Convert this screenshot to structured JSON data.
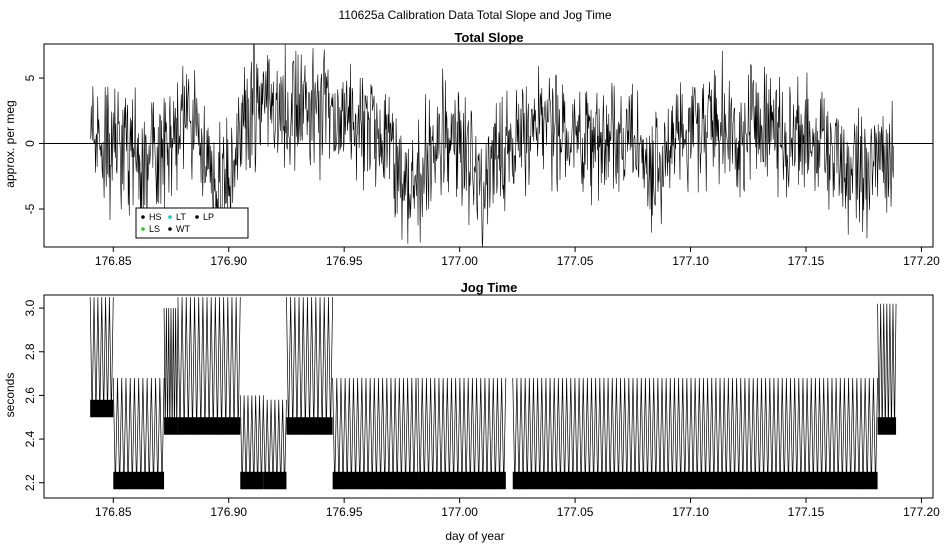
{
  "figure": {
    "title": "110625a   Calibration Data Total Slope and Jog Time"
  },
  "chart_data": [
    {
      "type": "line",
      "title": "Total Slope",
      "xlabel": "",
      "ylabel": "approx. per meg",
      "xlim": [
        176.82,
        177.205
      ],
      "ylim": [
        -7.9,
        7.6
      ],
      "xticks": [
        176.85,
        176.9,
        176.95,
        177.0,
        177.05,
        177.1,
        177.15,
        177.2
      ],
      "xtick_labels": [
        "176.85",
        "176.90",
        "176.95",
        "177.00",
        "177.05",
        "177.10",
        "177.15",
        "177.20"
      ],
      "yticks": [
        -5,
        0,
        5
      ],
      "ytick_labels": [
        "-5",
        "0",
        "5"
      ],
      "hline": 0,
      "legend": {
        "position": "bottom-left",
        "entries": [
          {
            "label": "HS",
            "color": "#000000"
          },
          {
            "label": "LS",
            "color": "#22cc22"
          },
          {
            "label": "LT",
            "color": "#00cccc"
          },
          {
            "label": "WT",
            "color": "#000000"
          },
          {
            "label": "LP",
            "color": "#000000"
          }
        ]
      },
      "series": [
        {
          "color": "#000000",
          "x": [
            176.84,
            176.845,
            176.85,
            176.855,
            176.86,
            176.865,
            176.87,
            176.875,
            176.88,
            176.885,
            176.89,
            176.895,
            176.9,
            176.905,
            176.91,
            176.915,
            176.92,
            176.925,
            176.93,
            176.935,
            176.94,
            176.945,
            176.95,
            176.955,
            176.96,
            176.965,
            176.97,
            176.975,
            176.98,
            176.985,
            176.99,
            176.995,
            177.0,
            177.005,
            177.01,
            177.015,
            177.02,
            177.025,
            177.03,
            177.035,
            177.04,
            177.045,
            177.05,
            177.055,
            177.06,
            177.065,
            177.07,
            177.075,
            177.08,
            177.085,
            177.09,
            177.095,
            177.1,
            177.105,
            177.11,
            177.115,
            177.12,
            177.125,
            177.13,
            177.135,
            177.14,
            177.145,
            177.15,
            177.155,
            177.16,
            177.165,
            177.17,
            177.175,
            177.18,
            177.185,
            177.188
          ],
          "y": [
            1.0,
            -0.5,
            -1.0,
            0.5,
            -1.5,
            -2.0,
            -0.5,
            0.5,
            1.5,
            1.5,
            -1.0,
            -3.5,
            -2.0,
            1.0,
            3.0,
            3.5,
            2.5,
            2.5,
            3.0,
            3.0,
            2.5,
            2.0,
            1.5,
            1.0,
            1.0,
            0.5,
            -0.5,
            -2.5,
            -4.0,
            -1.0,
            0.5,
            1.0,
            0.0,
            -1.5,
            -3.0,
            -1.0,
            0.0,
            0.5,
            1.0,
            1.5,
            1.5,
            1.0,
            0.5,
            0.0,
            -0.5,
            0.0,
            0.5,
            0.0,
            -1.0,
            -2.0,
            0.5,
            1.0,
            1.0,
            1.5,
            2.0,
            1.5,
            1.0,
            1.0,
            1.5,
            1.0,
            0.5,
            0.0,
            0.0,
            -0.5,
            -1.0,
            -1.5,
            -2.0,
            -3.0,
            -1.0,
            -1.5,
            0.0
          ]
        }
      ]
    },
    {
      "type": "line",
      "title": "Jog Time",
      "xlabel": "day of year",
      "ylabel": "seconds",
      "xlim": [
        176.82,
        177.205
      ],
      "ylim": [
        2.13,
        3.06
      ],
      "xticks": [
        176.85,
        176.9,
        176.95,
        177.0,
        177.05,
        177.1,
        177.15,
        177.2
      ],
      "xtick_labels": [
        "176.85",
        "176.90",
        "176.95",
        "177.00",
        "177.05",
        "177.10",
        "177.15",
        "177.20"
      ],
      "yticks": [
        2.2,
        2.4,
        2.6,
        2.8,
        3.0
      ],
      "ytick_labels": [
        "2.2",
        "2.4",
        "2.6",
        "2.8",
        "3.0"
      ],
      "series": [
        {
          "color": "#000000",
          "segments": [
            {
              "x_start": 176.84,
              "x_end": 176.85,
              "low": 2.5,
              "high": 3.05
            },
            {
              "x_start": 176.85,
              "x_end": 176.872,
              "low": 2.17,
              "high": 2.68
            },
            {
              "x_start": 176.872,
              "x_end": 176.878,
              "low": 2.42,
              "high": 3.0
            },
            {
              "x_start": 176.878,
              "x_end": 176.905,
              "low": 2.42,
              "high": 3.05
            },
            {
              "x_start": 176.905,
              "x_end": 176.915,
              "low": 2.17,
              "high": 2.6
            },
            {
              "x_start": 176.915,
              "x_end": 176.925,
              "low": 2.17,
              "high": 2.58
            },
            {
              "x_start": 176.925,
              "x_end": 176.945,
              "low": 2.42,
              "high": 3.05
            },
            {
              "x_start": 176.945,
              "x_end": 176.982,
              "low": 2.17,
              "high": 2.68
            },
            {
              "x_start": 176.982,
              "x_end": 177.02,
              "low": 2.17,
              "high": 2.68
            },
            {
              "x_start": 177.023,
              "x_end": 177.181,
              "low": 2.17,
              "high": 2.68
            },
            {
              "x_start": 177.181,
              "x_end": 177.189,
              "low": 2.42,
              "high": 3.02
            }
          ]
        }
      ]
    }
  ]
}
